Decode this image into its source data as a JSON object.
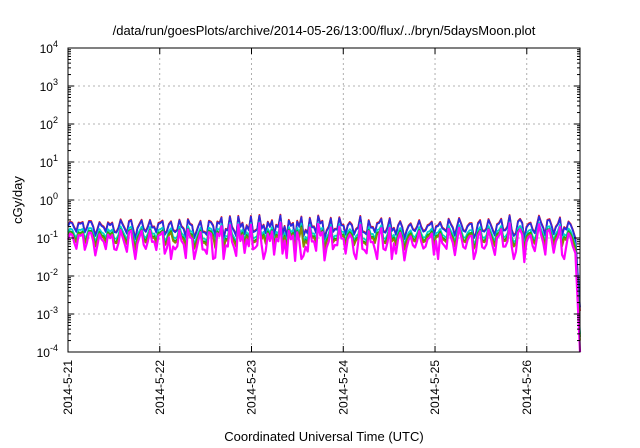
{
  "chart_data": {
    "type": "line",
    "title": "/data/run/goesPlots/archive/2014-05-26/13:00/flux/../bryn/5daysMoon.plot",
    "xlabel": "Coordinated Universal Time (UTC)",
    "ylabel": "cGy/day",
    "x_ticks": [
      "2014-5-21",
      "2014-5-22",
      "2014-5-23",
      "2014-5-24",
      "2014-5-25",
      "2014-5-26"
    ],
    "y_scale": "log",
    "ylim": [
      0.0001,
      10000
    ],
    "y_ticks": [
      {
        "base": "10",
        "exp": "4"
      },
      {
        "base": "10",
        "exp": "3"
      },
      {
        "base": "10",
        "exp": "2"
      },
      {
        "base": "10",
        "exp": "1"
      },
      {
        "base": "10",
        "exp": "0"
      },
      {
        "base": "10",
        "exp": "-1"
      },
      {
        "base": "10",
        "exp": "-2"
      },
      {
        "base": "10",
        "exp": "-3"
      },
      {
        "base": "10",
        "exp": "-4"
      }
    ],
    "xlim_days": [
      0,
      5.58
    ],
    "grid": true,
    "series": [
      {
        "color": "#e8141e",
        "level": 0.2,
        "drop_end": 0.0012
      },
      {
        "color": "#2a2adf",
        "level": 0.19,
        "drop_end": 0.0015
      },
      {
        "color": "#00d2c8",
        "level": 0.13,
        "drop_end": 0.0003
      },
      {
        "color": "#1aa51a",
        "level": 0.11,
        "drop_end": 0.00025
      },
      {
        "color": "#8a8a00",
        "level": 0.1,
        "drop_end": 0.0002
      },
      {
        "color": "#ff00ff",
        "level": 0.08,
        "drop_end": 0.0001
      }
    ]
  }
}
